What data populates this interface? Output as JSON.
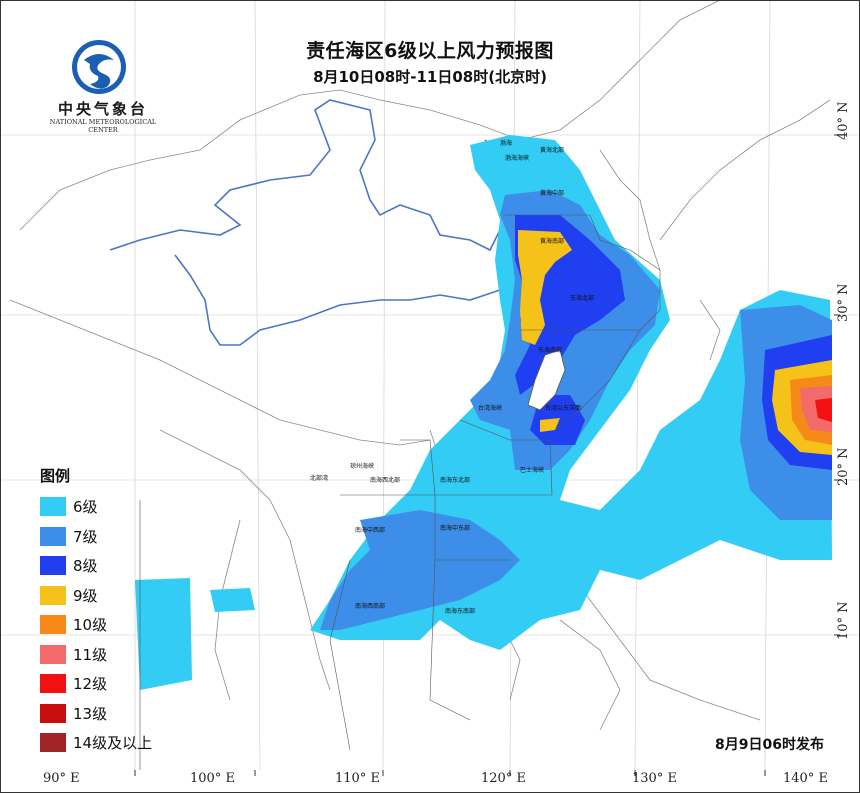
{
  "title": "责任海区6级以上风力预报图",
  "subtitle": "8月10日08时-11日08时(北京时)",
  "logo": {
    "name_cn": "中央气象台",
    "name_en": "NATIONAL METEOROLOGICAL CENTER",
    "icon": "nmc-logo-icon"
  },
  "legend": {
    "title": "图例",
    "items": [
      {
        "label": "6级",
        "color": "#33ccf5"
      },
      {
        "label": "7级",
        "color": "#3d8ee8"
      },
      {
        "label": "8级",
        "color": "#1f3ff0"
      },
      {
        "label": "9级",
        "color": "#f5c21a"
      },
      {
        "label": "10级",
        "color": "#f58a18"
      },
      {
        "label": "11级",
        "color": "#f26a6a"
      },
      {
        "label": "12级",
        "color": "#f21010"
      },
      {
        "label": "13级",
        "color": "#c80d0d"
      },
      {
        "label": "14级及以上",
        "color": "#a12525"
      }
    ]
  },
  "issued": "8月9日06时发布",
  "axes": {
    "longitudes": [
      "90° E",
      "100° E",
      "110° E",
      "120° E",
      "130° E",
      "140° E"
    ],
    "latitudes": [
      "10° N",
      "20° N",
      "30° N",
      "40° N"
    ]
  },
  "sea_areas": [
    "渤海",
    "渤海海峡",
    "黄海北部",
    "黄海中部",
    "黄海南部",
    "东海北部",
    "东海南部",
    "台湾海峡",
    "台湾以东洋面",
    "巴士海峡",
    "北部湾",
    "琼州海峡",
    "南海西北部",
    "南海东北部",
    "南海中西部",
    "南海中东部",
    "南海西南部",
    "南海东南部"
  ]
}
